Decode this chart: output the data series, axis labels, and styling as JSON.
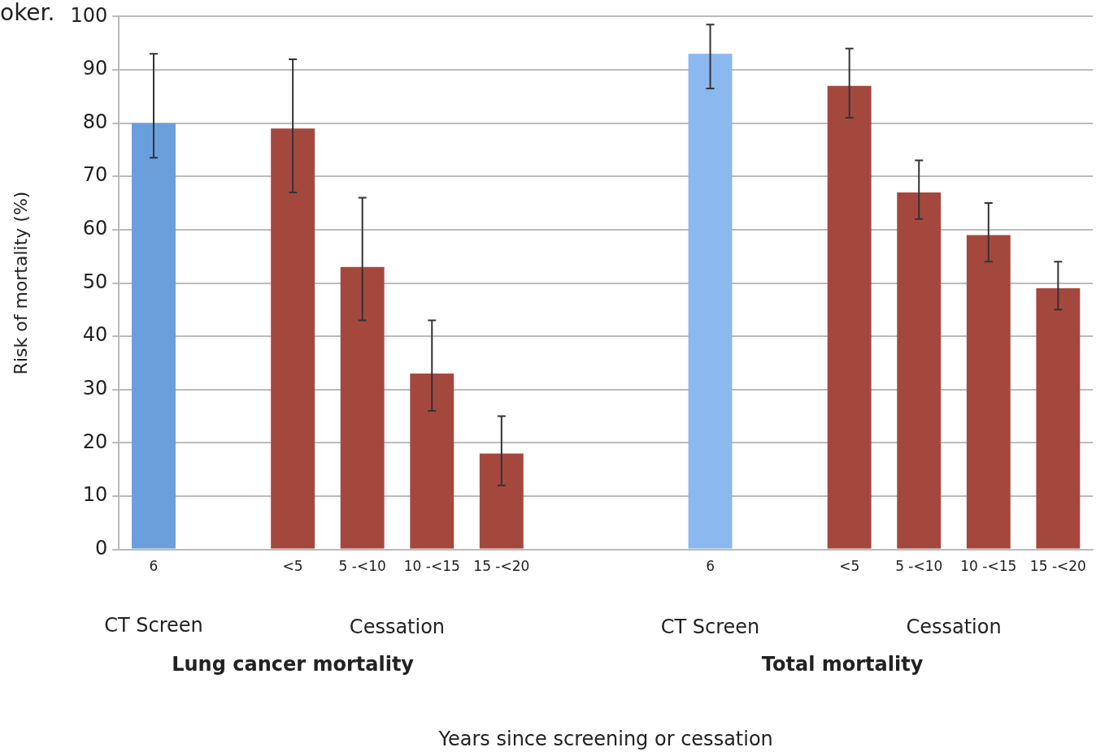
{
  "chart_data": {
    "type": "bar",
    "ylabel": "Risk of mortality (%)",
    "categories": [
      "6",
      null,
      "<5",
      "5 -<10",
      "10 -<15",
      "15 -<20",
      null,
      null,
      "6",
      null,
      "<5",
      "5 -<10",
      "10 -<15",
      "15 -<20"
    ],
    "values": [
      80,
      null,
      79,
      53,
      33,
      18,
      null,
      null,
      93,
      null,
      87,
      67,
      59,
      49
    ],
    "colors": [
      "#6a9fdb",
      null,
      "#a4483e",
      "#a4483e",
      "#a4483e",
      "#a4483e",
      null,
      null,
      "#8bb8ee",
      null,
      "#a4483e",
      "#a4483e",
      "#a4483e",
      "#a4483e"
    ],
    "errors": [
      [
        73.5,
        93
      ],
      null,
      [
        67,
        92
      ],
      [
        43,
        66
      ],
      [
        26,
        43
      ],
      [
        12,
        25
      ],
      null,
      null,
      [
        86.5,
        98.5
      ],
      null,
      [
        81,
        94
      ],
      [
        62,
        73
      ],
      [
        54,
        65
      ],
      [
        45,
        54
      ]
    ],
    "ylim": [
      0,
      100
    ],
    "yticks": [
      0,
      10,
      20,
      30,
      40,
      50,
      60,
      70,
      80,
      90,
      100
    ],
    "grid": "y",
    "legend": false,
    "annotations": [
      "oker.",
      "CT Screen",
      "Cessation",
      "Lung cancer mortality",
      "CT Screen",
      "Cessation",
      "Total mortality",
      "Years since screening or cessation"
    ]
  }
}
